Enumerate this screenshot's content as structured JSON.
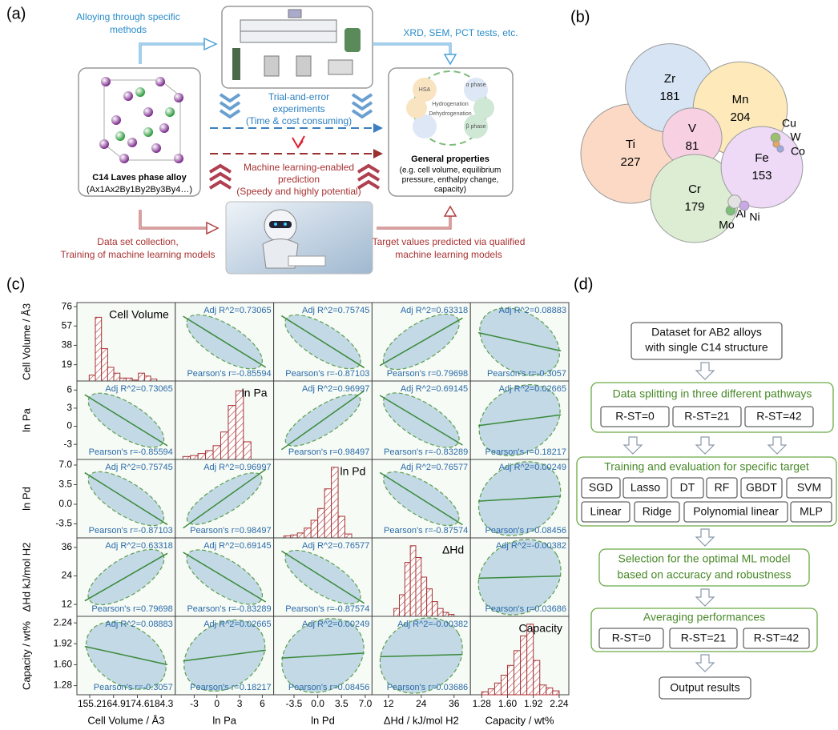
{
  "panel_a": {
    "label": "(a)",
    "alloying": [
      "Alloying through specific",
      "methods"
    ],
    "tests": "XRD, SEM, PCT tests, etc.",
    "trial": [
      "Trial-and-error",
      "experiments",
      "(Time & cost consuming)"
    ],
    "alloy_name": "C14 Laves phase alloy",
    "alloy_formula": "(Ax1Ax2By1By2By3By4…)",
    "ml": [
      "Machine learning-enabled",
      "prediction",
      "(Speedy and highly potential)"
    ],
    "props_title": "General properties",
    "props": [
      "(e.g. cell volume, equilibrium",
      "pressure, enthalpy change,",
      "capacity)"
    ],
    "cycle": [
      "HSA",
      "α phase",
      "β phase",
      "Hydrogenation",
      "Dehydrogenation"
    ],
    "dataset": [
      "Data set collection,",
      "Training of machine learning models"
    ],
    "target": [
      "Target values predicted via qualified",
      "machine learning models"
    ]
  },
  "panel_b": {
    "label": "(b)",
    "elements": [
      {
        "name": "Ti",
        "value": 227,
        "color": "#fbd9c4",
        "value_printed": true
      },
      {
        "name": "Zr",
        "value": 181,
        "color": "#d6e4f4",
        "value_printed": true
      },
      {
        "name": "Mn",
        "value": 204,
        "color": "#fde9b9",
        "value_printed": true
      },
      {
        "name": "V",
        "value": 81,
        "color": "#f7d0e2",
        "value_printed": true
      },
      {
        "name": "Cr",
        "value": 179,
        "color": "#dcedd3",
        "value_printed": true
      },
      {
        "name": "Fe",
        "value": 153,
        "color": "#eedaf7",
        "value_printed": true
      },
      {
        "name": "Cu",
        "value": 2,
        "color": "#9bc06b",
        "value_printed": false
      },
      {
        "name": "W",
        "value": 1,
        "color": "#e8a560",
        "value_printed": false
      },
      {
        "name": "Co",
        "value": 1,
        "color": "#9ea8e6",
        "value_printed": false
      },
      {
        "name": "Mo",
        "value": 2,
        "color": "#7bbf78",
        "value_printed": false
      },
      {
        "name": "Al",
        "value": 4,
        "color": "#e2e2e2",
        "value_printed": false
      },
      {
        "name": "Ni",
        "value": 2,
        "color": "#c9a8e8",
        "value_printed": false
      }
    ]
  },
  "panel_c": {
    "label": "(c)",
    "variables": [
      {
        "x_label": "Cell Volume / Å3",
        "y_label": "Cell Volume / Å3",
        "diag_title": "Cell Volume",
        "xlim": [
          150,
          190
        ],
        "xticks": [
          155.2,
          164.9,
          174.6,
          184.3
        ],
        "ylim": [
          3,
          80
        ],
        "yticks": [
          19,
          38,
          57,
          76
        ],
        "bins": [
          155,
          157.5,
          160,
          162.5,
          165,
          167.5,
          170,
          172.5,
          175,
          177.5,
          180,
          182.5
        ],
        "counts": [
          6,
          65,
          33,
          14,
          8,
          3,
          3,
          1,
          8,
          5,
          2
        ],
        "count_lim": [
          0,
          80
        ]
      },
      {
        "x_label": "ln Pa",
        "y_label": "ln Pa",
        "diag_title": "ln Pa",
        "xlim": [
          -5.5,
          7.5
        ],
        "xticks": [
          -3,
          0,
          3,
          6
        ],
        "ylim": [
          -5.5,
          7.5
        ],
        "yticks": [
          -3,
          0,
          3,
          6
        ],
        "bins": [
          -4.5,
          -3.5,
          -2.5,
          -1.5,
          -0.5,
          0.5,
          1.5,
          2.5,
          3.5,
          4.5
        ],
        "counts": [
          3,
          4,
          6,
          9,
          14,
          28,
          55,
          70,
          18
        ],
        "count_lim": [
          0,
          80
        ]
      },
      {
        "x_label": "ln Pd",
        "y_label": "ln Pd",
        "diag_title": "ln Pd",
        "xlim": [
          -6.5,
          8
        ],
        "xticks": [
          {
            "value": -3.5,
            "label": "-3.5"
          },
          {
            "value": 0,
            "label": "0.0"
          },
          {
            "value": 3.5,
            "label": "3.5"
          },
          {
            "value": 7,
            "label": "7.0"
          }
        ],
        "ylim": [
          -6,
          8
        ],
        "yticks": [
          {
            "value": -3.5,
            "label": "-3.5"
          },
          {
            "value": 0,
            "label": "0.0"
          },
          {
            "value": 3.5,
            "label": "3.5"
          },
          {
            "value": 7,
            "label": "7.0"
          }
        ],
        "bins": [
          -5,
          -4,
          -3,
          -2,
          -1,
          0,
          1,
          2,
          3,
          4,
          5
        ],
        "counts": [
          2,
          3,
          5,
          10,
          18,
          30,
          50,
          72,
          22,
          4
        ],
        "count_lim": [
          0,
          80
        ]
      },
      {
        "x_label": "ΔHd / kJ/mol H2",
        "y_label": "ΔHd kJ/mol H2",
        "diag_title": "ΔHd",
        "xlim": [
          6,
          42
        ],
        "xticks": [
          12,
          24,
          36
        ],
        "ylim": [
          7,
          40
        ],
        "yticks": [
          12,
          24,
          36
        ],
        "bins": [
          14,
          16,
          18,
          20,
          22,
          24,
          26,
          28,
          30,
          32,
          34,
          36
        ],
        "counts": [
          8,
          22,
          55,
          72,
          60,
          40,
          28,
          15,
          8,
          4,
          2
        ],
        "count_lim": [
          0,
          80
        ]
      },
      {
        "x_label": "Capacity / wt%",
        "y_label": "Capacity / wt%",
        "diag_title": "Capacity",
        "xlim": [
          1.14,
          2.36
        ],
        "xticks": [
          1.28,
          {
            "value": 1.6,
            "label": "1.60"
          },
          1.92,
          2.24
        ],
        "ylim": [
          1.14,
          2.34
        ],
        "yticks": [
          1.28,
          {
            "value": 1.6,
            "label": "1.60"
          },
          1.92,
          2.24
        ],
        "bins": [
          1.28,
          1.36,
          1.44,
          1.52,
          1.6,
          1.68,
          1.76,
          1.84,
          1.92,
          2.0,
          2.08,
          2.16,
          2.24
        ],
        "counts": [
          3,
          6,
          12,
          20,
          30,
          45,
          60,
          72,
          35,
          10,
          7,
          4
        ],
        "count_lim": [
          0,
          80
        ]
      }
    ],
    "cells": [
      [
        null,
        {
          "adj_r2": 0.73065,
          "adj_label": "Adj R^2=0.73065",
          "r": -0.85594,
          "r_label": "Pearson's r=-0.85594"
        },
        {
          "adj_r2": 0.75745,
          "adj_label": "Adj R^2=0.75745",
          "r": -0.87103,
          "r_label": "Pearson's r=-0.87103"
        },
        {
          "adj_r2": 0.63318,
          "adj_label": "Adj R^2=0.63318",
          "r": 0.79698,
          "r_label": "Pearson's r=0.79698"
        },
        {
          "adj_r2": 0.08883,
          "adj_label": "Adj R^2=0.08883",
          "r": -0.3057,
          "r_label": "Pearson's r=-0.3057"
        }
      ],
      [
        {
          "adj_r2": 0.73065,
          "adj_label": "Adj R^2=0.73065",
          "r": -0.85594,
          "r_label": "Pearson's r=-0.85594"
        },
        null,
        {
          "adj_r2": 0.96997,
          "adj_label": "Adj R^2=0.96997",
          "r": 0.98497,
          "r_label": "Pearson's r=0.98497"
        },
        {
          "adj_r2": 0.69145,
          "adj_label": "Adj R^2=0.69145",
          "r": -0.83289,
          "r_label": "Pearson's r=-0.83289"
        },
        {
          "adj_r2": 0.02665,
          "adj_label": "Adj R^2=0.02665",
          "r": 0.18217,
          "r_label": "Pearson's r=0.18217"
        }
      ],
      [
        {
          "adj_r2": 0.75745,
          "adj_label": "Adj R^2=0.75745",
          "r": -0.87103,
          "r_label": "Pearson's r=-0.87103"
        },
        {
          "adj_r2": 0.96997,
          "adj_label": "Adj R^2=0.96997",
          "r": 0.98497,
          "r_label": "Pearson's r=0.98497"
        },
        null,
        {
          "adj_r2": 0.76577,
          "adj_label": "Adj R^2=0.76577",
          "r": -0.87574,
          "r_label": "Pearson's r=-0.87574"
        },
        {
          "adj_r2": 0.00249,
          "adj_label": "Adj R^2=0.00249",
          "r": 0.08456,
          "r_label": "Pearson's r=0.08456"
        }
      ],
      [
        {
          "adj_r2": 0.63318,
          "adj_label": "Adj R^2=0.63318",
          "r": 0.79698,
          "r_label": "Pearson's r=0.79698"
        },
        {
          "adj_r2": 0.69145,
          "adj_label": "Adj R^2=0.69145",
          "r": -0.83289,
          "r_label": "Pearson's r=-0.83289"
        },
        {
          "adj_r2": 0.76577,
          "adj_label": "Adj R^2=0.76577",
          "r": -0.87574,
          "r_label": "Pearson's r=-0.87574"
        },
        null,
        {
          "adj_r2": -0.00382,
          "adj_label": "Adj R^2=-0.00382",
          "r": 0.03686,
          "r_label": "Pearson's r=0.03686"
        }
      ],
      [
        {
          "adj_r2": 0.08883,
          "adj_label": "Adj R^2=0.08883",
          "r": -0.3057,
          "r_label": "Pearson's r=-0.3057"
        },
        {
          "adj_r2": 0.02665,
          "adj_label": "Adj R^2=0.02665",
          "r": 0.18217,
          "r_label": "Pearson's r=0.18217"
        },
        {
          "adj_r2": 0.00249,
          "adj_label": "Adj R^2=0.00249",
          "r": 0.08456,
          "r_label": "Pearson's r=0.08456"
        },
        {
          "adj_r2": -0.00382,
          "adj_label": "Adj R^2=-0.00382",
          "r": 0.03686,
          "r_label": "Pearson's r=0.03686"
        },
        null
      ]
    ]
  },
  "panel_d": {
    "label": "(d)",
    "dataset": [
      "Dataset for AB2 alloys",
      "with single C14 structure"
    ],
    "splitting": {
      "title": "Data splitting in three different pathways",
      "items": [
        "R-ST=0",
        "R-ST=21",
        "R-ST=42"
      ]
    },
    "training": {
      "title": "Training and evaluation for specific target",
      "models": [
        [
          "SGD",
          "Lasso",
          "DT",
          "RF",
          "GBDT",
          "SVM"
        ],
        [
          "Linear",
          "Ridge",
          "Polynomial linear",
          "MLP"
        ]
      ]
    },
    "selection": [
      "Selection for the optimal ML model",
      "based on accuracy and robustness"
    ],
    "averaging": {
      "title": "Averaging performances",
      "items": [
        "R-ST=0",
        "R-ST=21",
        "R-ST=42"
      ]
    },
    "output": "Output results"
  }
}
